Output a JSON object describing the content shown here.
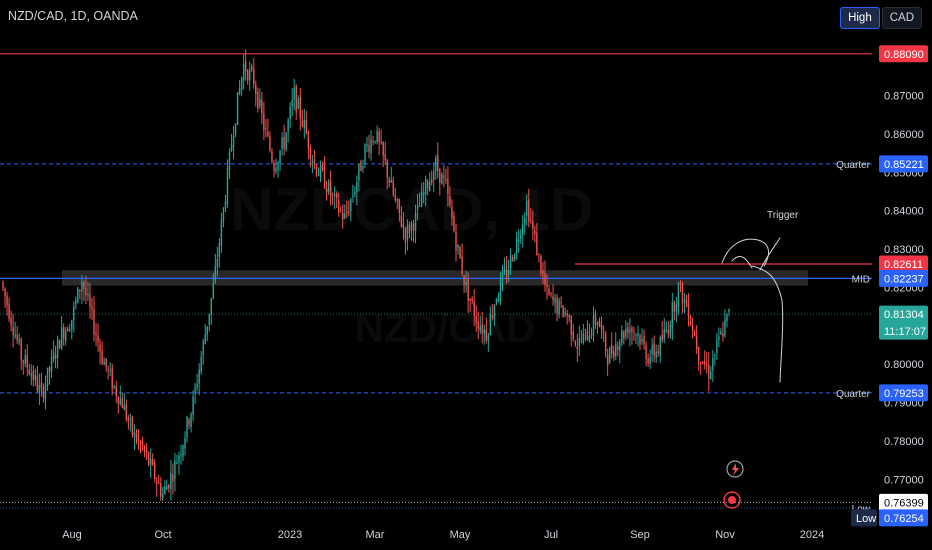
{
  "header": {
    "symbol": "NZD/CAD, 1D, OANDA",
    "high_button": "High",
    "currency_button": "CAD"
  },
  "watermark": {
    "line1": "NZDCAD, 1D",
    "line2": "NZD/CAD"
  },
  "colors": {
    "up": "#26a69a",
    "down": "#ef5350",
    "background": "#000000",
    "blue_line": "#2962ff",
    "red_line": "#f23645"
  },
  "chart_data": {
    "type": "candlestick",
    "title": "NZD/CAD, 1D, OANDA",
    "x_axis": {
      "tick_labels": [
        "Aug",
        "Oct",
        "2023",
        "Mar",
        "May",
        "Jul",
        "Sep",
        "Nov",
        "2024"
      ]
    },
    "y_axis": {
      "range": [
        0.762,
        0.8845
      ],
      "tick_labels": [
        "0.87000",
        "0.86000",
        "0.85000",
        "0.84000",
        "0.83000",
        "0.82000",
        "0.81000",
        "0.80000",
        "0.79000",
        "0.78000",
        "0.77000"
      ],
      "ticks": [
        0.87,
        0.86,
        0.85,
        0.84,
        0.83,
        0.82,
        0.81,
        0.8,
        0.79,
        0.78,
        0.77
      ]
    },
    "levels": [
      {
        "label": "",
        "value": 0.8809,
        "price_label": "0.88090",
        "color": "#f23645",
        "style": "solid"
      },
      {
        "label": "Quarter",
        "value": 0.85221,
        "price_label": "0.85221",
        "color": "#2962ff",
        "style": "dashed"
      },
      {
        "label": "",
        "value": 0.82611,
        "price_label": "0.82611",
        "color": "#f23645",
        "style": "solid"
      },
      {
        "label": "MID",
        "value": 0.82237,
        "price_label": "0.82237",
        "color": "#2962ff",
        "style": "solid"
      },
      {
        "label": "",
        "value": 0.81304,
        "price_label": "0.81304",
        "color": "#26a69a",
        "style": "dotted"
      },
      {
        "label": "Quarter",
        "value": 0.79253,
        "price_label": "0.79253",
        "color": "#2962ff",
        "style": "dashed"
      },
      {
        "label": "",
        "value": 0.76399,
        "price_label": "0.76399",
        "color": "#ffffff",
        "style": "dotted"
      },
      {
        "label": "Low",
        "value": 0.76254,
        "price_label": "0.76254",
        "color": "#2962ff",
        "style": "dotted"
      }
    ],
    "current_price": {
      "value": 0.81304,
      "label": "0.81304",
      "countdown": "11:17:07"
    },
    "zone": {
      "from": 0.8205,
      "to": 0.8245
    },
    "annotation": {
      "text": "Trigger"
    },
    "price_path": [
      0.8215,
      0.812,
      0.802,
      0.798,
      0.792,
      0.8,
      0.808,
      0.812,
      0.822,
      0.812,
      0.802,
      0.795,
      0.79,
      0.782,
      0.778,
      0.772,
      0.766,
      0.772,
      0.78,
      0.79,
      0.805,
      0.82,
      0.84,
      0.862,
      0.878,
      0.874,
      0.862,
      0.852,
      0.858,
      0.87,
      0.862,
      0.852,
      0.848,
      0.842,
      0.838,
      0.846,
      0.856,
      0.86,
      0.852,
      0.842,
      0.834,
      0.838,
      0.846,
      0.852,
      0.846,
      0.832,
      0.82,
      0.812,
      0.808,
      0.818,
      0.824,
      0.832,
      0.842,
      0.83,
      0.818,
      0.815,
      0.813,
      0.805,
      0.808,
      0.812,
      0.802,
      0.806,
      0.81,
      0.808,
      0.802,
      0.804,
      0.81,
      0.82,
      0.814,
      0.803,
      0.798,
      0.806,
      0.813
    ]
  }
}
